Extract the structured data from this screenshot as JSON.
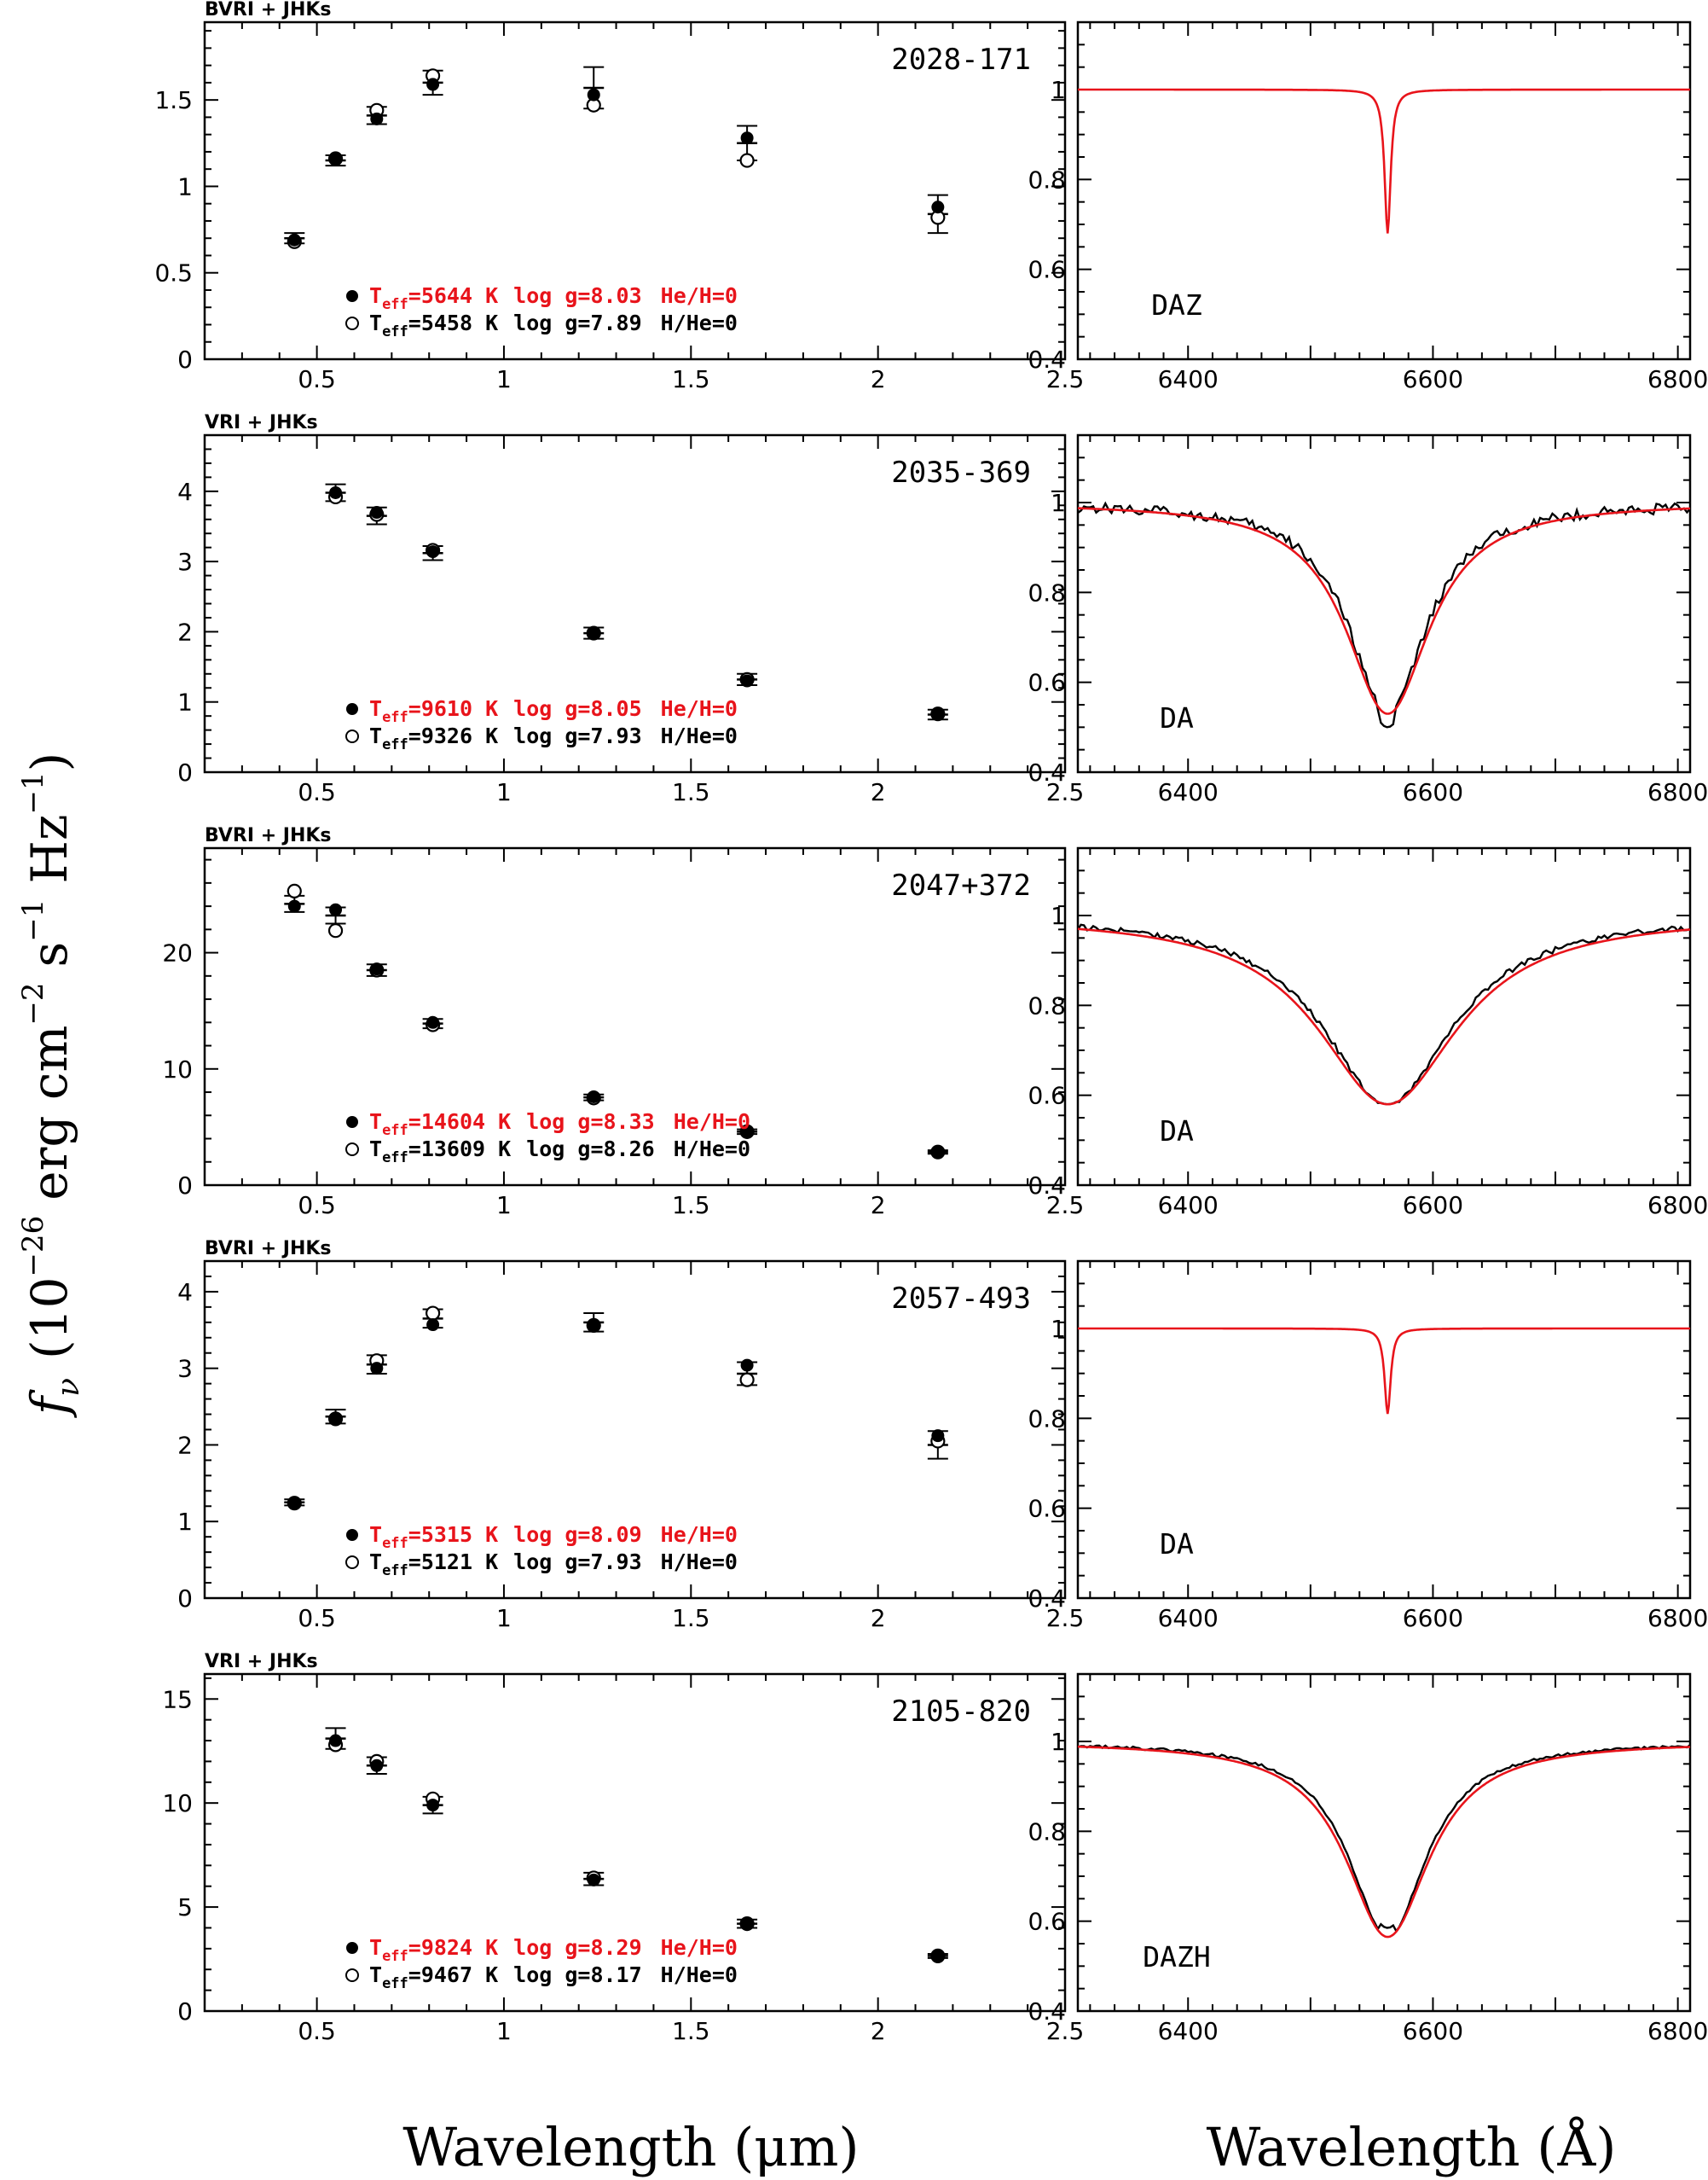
{
  "figure": {
    "y_label_main": "f",
    "y_label_nu": "ν",
    "y_label_rest": "(10",
    "y_label_exp1": "−26",
    "y_label_unit1": "erg cm",
    "y_label_exp2": "−2",
    "y_label_unit2": "s",
    "y_label_exp3": "−1",
    "y_label_unit3": "Hz",
    "y_label_exp4": "−1",
    "y_label_close": ")",
    "x_label_left": "Wavelength (μm)",
    "x_label_right": "Wavelength (Å)"
  },
  "colors": {
    "model": "#e8141b",
    "data": "#000000"
  },
  "chart_data": [
    {
      "type": "scatter",
      "name": "2028-171",
      "bands_label": "BVRI + JHKs",
      "xlim": [
        0.2,
        2.5
      ],
      "ylim": [
        0.0,
        1.95
      ],
      "yticks": [
        0.0,
        0.5,
        1.0,
        1.5
      ],
      "yfmt": 1,
      "observed": [
        {
          "x": 0.44,
          "y": 0.7,
          "err": 0.03
        },
        {
          "x": 0.55,
          "y": 1.15,
          "err": 0.03
        },
        {
          "x": 0.66,
          "y": 1.41,
          "err": 0.05
        },
        {
          "x": 0.81,
          "y": 1.6,
          "err": 0.07
        },
        {
          "x": 1.24,
          "y": 1.57,
          "err": 0.12
        },
        {
          "x": 1.65,
          "y": 1.25,
          "err": 0.1
        },
        {
          "x": 2.16,
          "y": 0.84,
          "err": 0.11
        }
      ],
      "model_h": [
        0.69,
        1.16,
        1.39,
        1.59,
        1.53,
        1.28,
        0.88
      ],
      "model_he": [
        0.68,
        1.16,
        1.44,
        1.64,
        1.47,
        1.15,
        0.82
      ],
      "legend_h": {
        "teff": "=5644 K",
        "logg": "log g=8.03",
        "comp": "He/H=0"
      },
      "legend_he": {
        "teff": "=5458 K",
        "logg": "log g=7.89",
        "comp": "H/He=0"
      },
      "spectral_type": "DAZ",
      "halpha": {
        "xlim": [
          6310,
          6810
        ],
        "ylim": [
          0.4,
          1.15
        ],
        "yticks": [
          0.4,
          0.6,
          0.8,
          1.0
        ],
        "xticks": [
          6400,
          6600,
          6800
        ],
        "depth": 0.32,
        "width": 3,
        "noise": 0,
        "obs_offset": 0.0,
        "has_obs": false
      }
    },
    {
      "type": "scatter",
      "name": "2035-369",
      "bands_label": "VRI + JHKs",
      "xlim": [
        0.2,
        2.5
      ],
      "ylim": [
        0.0,
        4.8
      ],
      "yticks": [
        0.0,
        1.0,
        2.0,
        3.0,
        4.0
      ],
      "yfmt": 1,
      "observed": [
        {
          "x": 0.55,
          "y": 3.98,
          "err": 0.12
        },
        {
          "x": 0.66,
          "y": 3.65,
          "err": 0.12
        },
        {
          "x": 0.81,
          "y": 3.12,
          "err": 0.1
        },
        {
          "x": 1.24,
          "y": 1.98,
          "err": 0.08
        },
        {
          "x": 1.65,
          "y": 1.32,
          "err": 0.08
        },
        {
          "x": 2.16,
          "y": 0.82,
          "err": 0.07
        }
      ],
      "model_h": [
        3.98,
        3.7,
        3.14,
        1.97,
        1.3,
        0.83
      ],
      "model_he": [
        3.92,
        3.67,
        3.16,
        1.98,
        1.32,
        0.83
      ],
      "legend_h": {
        "teff": "=9610 K",
        "logg": "log g=8.05",
        "comp": "He/H=0"
      },
      "legend_he": {
        "teff": "=9326 K",
        "logg": "log g=7.93",
        "comp": "H/He=0"
      },
      "spectral_type": "DA",
      "halpha": {
        "xlim": [
          6310,
          6810
        ],
        "ylim": [
          0.4,
          1.15
        ],
        "yticks": [
          0.4,
          0.6,
          0.8,
          1.0
        ],
        "xticks": [
          6400,
          6600,
          6800
        ],
        "depth": 0.47,
        "width": 42,
        "noise": 0.012,
        "obs_offset": -0.03,
        "has_obs": true
      }
    },
    {
      "type": "scatter",
      "name": "2047+372",
      "bands_label": "BVRI + JHKs",
      "xlim": [
        0.2,
        2.5
      ],
      "ylim": [
        0.0,
        29.0
      ],
      "yticks": [
        0.0,
        10.0,
        20.0
      ],
      "yfmt": 1,
      "observed": [
        {
          "x": 0.44,
          "y": 24.2,
          "err": 0.7
        },
        {
          "x": 0.55,
          "y": 23.2,
          "err": 0.7
        },
        {
          "x": 0.66,
          "y": 18.5,
          "err": 0.5
        },
        {
          "x": 0.81,
          "y": 13.9,
          "err": 0.4
        },
        {
          "x": 1.24,
          "y": 7.55,
          "err": 0.25
        },
        {
          "x": 1.65,
          "y": 4.6,
          "err": 0.2
        },
        {
          "x": 2.16,
          "y": 2.85,
          "err": 0.15
        }
      ],
      "model_h": [
        24.0,
        23.7,
        18.6,
        14.0,
        7.6,
        4.6,
        2.9
      ],
      "model_he": [
        25.3,
        21.9,
        18.5,
        13.8,
        7.5,
        4.6,
        2.85
      ],
      "legend_h": {
        "teff": "=14604 K",
        "logg": "log g=8.33",
        "comp": "He/H=0"
      },
      "legend_he": {
        "teff": "=13609 K",
        "logg": "log g=8.26",
        "comp": "H/He=0"
      },
      "spectral_type": "DA",
      "halpha": {
        "xlim": [
          6310,
          6810
        ],
        "ylim": [
          0.4,
          1.15
        ],
        "yticks": [
          0.4,
          0.6,
          0.8,
          1.0
        ],
        "xticks": [
          6400,
          6600,
          6800
        ],
        "depth": 0.42,
        "width": 70,
        "noise": 0.006,
        "obs_offset": 0.0,
        "has_obs": true
      }
    },
    {
      "type": "scatter",
      "name": "2057-493",
      "bands_label": "BVRI + JHKs",
      "xlim": [
        0.2,
        2.5
      ],
      "ylim": [
        0.0,
        4.4
      ],
      "yticks": [
        0.0,
        1.0,
        2.0,
        3.0,
        4.0
      ],
      "yfmt": 1,
      "observed": [
        {
          "x": 0.44,
          "y": 1.25,
          "err": 0.04
        },
        {
          "x": 0.55,
          "y": 2.37,
          "err": 0.09
        },
        {
          "x": 0.66,
          "y": 3.05,
          "err": 0.12
        },
        {
          "x": 0.81,
          "y": 3.65,
          "err": 0.12
        },
        {
          "x": 1.24,
          "y": 3.6,
          "err": 0.12
        },
        {
          "x": 1.65,
          "y": 2.93,
          "err": 0.15
        },
        {
          "x": 2.16,
          "y": 2.0,
          "err": 0.18
        }
      ],
      "model_h": [
        1.24,
        2.34,
        3.0,
        3.57,
        3.56,
        3.04,
        2.12
      ],
      "model_he": [
        1.24,
        2.34,
        3.1,
        3.72,
        3.56,
        2.85,
        2.05
      ],
      "legend_h": {
        "teff": "=5315 K",
        "logg": "log g=8.09",
        "comp": "He/H=0"
      },
      "legend_he": {
        "teff": "=5121 K",
        "logg": "log g=7.93",
        "comp": "H/He=0"
      },
      "spectral_type": "DA",
      "halpha": {
        "xlim": [
          6310,
          6810
        ],
        "ylim": [
          0.4,
          1.15
        ],
        "yticks": [
          0.4,
          0.6,
          0.8,
          1.0
        ],
        "xticks": [
          6400,
          6600,
          6800
        ],
        "depth": 0.19,
        "width": 3,
        "noise": 0,
        "obs_offset": 0.0,
        "has_obs": false
      }
    },
    {
      "type": "scatter",
      "name": "2105-820",
      "bands_label": "VRI + JHKs",
      "xlim": [
        0.2,
        2.5
      ],
      "ylim": [
        0.0,
        16.2
      ],
      "yticks": [
        0.0,
        5.0,
        10.0,
        15.0
      ],
      "yfmt": 1,
      "observed": [
        {
          "x": 0.55,
          "y": 13.1,
          "err": 0.5
        },
        {
          "x": 0.66,
          "y": 11.8,
          "err": 0.4
        },
        {
          "x": 0.81,
          "y": 9.9,
          "err": 0.4
        },
        {
          "x": 1.24,
          "y": 6.35,
          "err": 0.3
        },
        {
          "x": 1.65,
          "y": 4.2,
          "err": 0.2
        },
        {
          "x": 2.16,
          "y": 2.65,
          "err": 0.1
        }
      ],
      "model_h": [
        13.0,
        11.8,
        9.9,
        6.3,
        4.2,
        2.65
      ],
      "model_he": [
        12.8,
        12.0,
        10.2,
        6.4,
        4.2,
        2.65
      ],
      "legend_h": {
        "teff": "=9824 K",
        "logg": "log g=8.29",
        "comp": "He/H=0"
      },
      "legend_he": {
        "teff": "=9467 K",
        "logg": "log g=8.17",
        "comp": "H/He=0"
      },
      "spectral_type": "DAZH",
      "halpha": {
        "xlim": [
          6310,
          6810
        ],
        "ylim": [
          0.4,
          1.15
        ],
        "yticks": [
          0.4,
          0.6,
          0.8,
          1.0
        ],
        "xticks": [
          6400,
          6600,
          6800
        ],
        "depth": 0.435,
        "width": 42,
        "noise": 0.003,
        "obs_offset": 0.02,
        "has_obs": true
      }
    }
  ],
  "shared_x_ticks_left": [
    0.5,
    1.0,
    1.5,
    2.0,
    2.5
  ]
}
